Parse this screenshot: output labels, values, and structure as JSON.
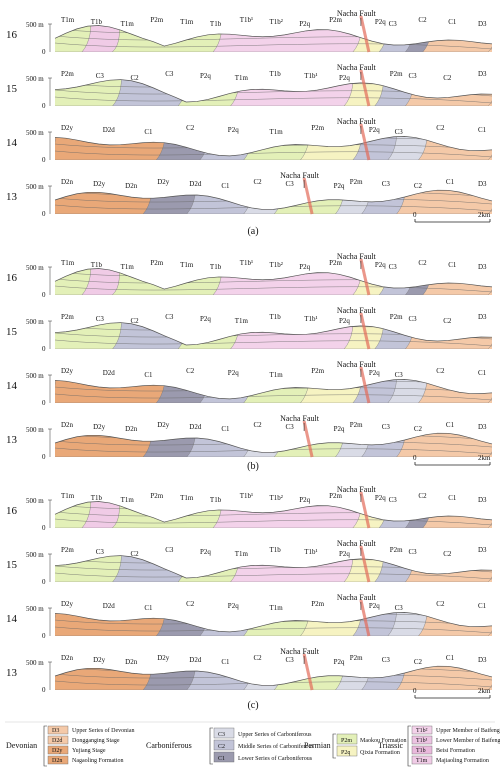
{
  "colors": {
    "devonian": "#f4c9a8",
    "devonian_dark": "#e9a878",
    "carb_upper": "#d9dbe6",
    "carb_mid": "#c2c4d8",
    "carb_low": "#9b9aae",
    "perm_maokou": "#e3f0b8",
    "perm_qixia": "#f6f3c2",
    "tri_upper": "#f3d2ea",
    "tri_lower": "#ecc3e2",
    "tri_beisi": "#e9b9dc",
    "tri_majiao": "#f0cbe6",
    "fault": "#e26b5a"
  },
  "panels": [
    {
      "caption": "(a)",
      "sections": [
        {
          "num": "16",
          "elev": "500 m",
          "zero": "0",
          "labels": [
            "T1m",
            "T1b",
            "T1m",
            "P2m",
            "T1m",
            "T1b",
            "T1b¹",
            "T1b²",
            "P2q",
            "P2m",
            "P2q",
            "C3",
            "C2",
            "C1",
            "D3"
          ],
          "fault": "Nacha Fault"
        },
        {
          "num": "15",
          "elev": "500 m",
          "zero": "0",
          "labels": [
            "P2m",
            "C3",
            "C2",
            "C3",
            "P2q",
            "T1m",
            "T1b",
            "T1b¹",
            "P2q",
            "P2m",
            "C3",
            "C2",
            "D3"
          ],
          "fault": "Nacha Fault"
        },
        {
          "num": "14",
          "elev": "500 m",
          "zero": "0",
          "labels": [
            "D2y",
            "D2d",
            "C1",
            "C2",
            "P2q",
            "T1m",
            "P2m",
            "P2q",
            "C3",
            "C2",
            "C1"
          ],
          "fault": "Nacha Fault"
        },
        {
          "num": "13",
          "elev": "500 m",
          "zero": "0",
          "labels": [
            "D2n",
            "D2y",
            "D2n",
            "D2y",
            "D2d",
            "C1",
            "C2",
            "C3",
            "P2q",
            "P2m",
            "C3",
            "C2",
            "C1",
            "D3"
          ],
          "fault": "Nacha Fault"
        }
      ],
      "scale": {
        "zero": "0",
        "end": "2km"
      }
    },
    {
      "caption": "(b)",
      "sections": [
        {
          "num": "16",
          "elev": "500 m",
          "zero": "0",
          "labels": [
            "T1m",
            "T1b",
            "T1m",
            "P2m",
            "T1m",
            "T1b",
            "T1b¹",
            "T1b²",
            "P2q",
            "P2m",
            "P2q",
            "C3",
            "C2",
            "C1",
            "D3"
          ],
          "fault": "Nacha Fault"
        },
        {
          "num": "15",
          "elev": "500 m",
          "zero": "0",
          "labels": [
            "P2m",
            "C3",
            "C2",
            "C3",
            "P2q",
            "T1m",
            "T1b",
            "T1b¹",
            "P2q",
            "P2m",
            "C3",
            "C2",
            "D3"
          ],
          "fault": "Nacha Fault"
        },
        {
          "num": "14",
          "elev": "500 m",
          "zero": "0",
          "labels": [
            "D2y",
            "D2d",
            "C1",
            "C2",
            "P2q",
            "T1m",
            "P2m",
            "P2q",
            "C3",
            "C2",
            "C1"
          ],
          "fault": "Nacha Fault"
        },
        {
          "num": "13",
          "elev": "500 m",
          "zero": "0",
          "labels": [
            "D2n",
            "D2y",
            "D2n",
            "D2y",
            "D2d",
            "C1",
            "C2",
            "C3",
            "P2q",
            "P2m",
            "C3",
            "C2",
            "C1",
            "D3"
          ],
          "fault": "Nacha Fault"
        }
      ],
      "scale": {
        "zero": "0",
        "end": "2km"
      }
    },
    {
      "caption": "(c)",
      "sections": [
        {
          "num": "16",
          "elev": "500 m",
          "zero": "0",
          "labels": [
            "T1m",
            "T1b",
            "T1m",
            "P2m",
            "T1m",
            "T1b",
            "T1b¹",
            "T1b²",
            "P2q",
            "P2m",
            "P2q",
            "C3",
            "C2",
            "C1",
            "D3"
          ],
          "fault": "Nacha Fault"
        },
        {
          "num": "15",
          "elev": "500 m",
          "zero": "0",
          "labels": [
            "P2m",
            "C3",
            "C2",
            "C3",
            "P2q",
            "T1m",
            "T1b",
            "T1b¹",
            "P2q",
            "P2m",
            "C3",
            "C2",
            "D3"
          ],
          "fault": "Nacha Fault"
        },
        {
          "num": "14",
          "elev": "500 m",
          "zero": "0",
          "labels": [
            "D2y",
            "D2d",
            "C1",
            "C2",
            "P2q",
            "T1m",
            "P2m",
            "P2q",
            "C3",
            "C2",
            "C1"
          ],
          "fault": "Nacha Fault"
        },
        {
          "num": "13",
          "elev": "500 m",
          "zero": "0",
          "labels": [
            "D2n",
            "D2y",
            "D2n",
            "D2y",
            "D2d",
            "C1",
            "C2",
            "C3",
            "P2q",
            "P2m",
            "C3",
            "C2",
            "C1",
            "D3"
          ],
          "fault": "Nacha Fault"
        }
      ],
      "scale": {
        "zero": "0",
        "end": "2km"
      }
    }
  ],
  "legend": {
    "devonian": {
      "title": "Devonian",
      "items": [
        {
          "code": "D3",
          "name": "Upper Series of Devonian"
        },
        {
          "code": "D2d",
          "name": "Dongganging Stage"
        },
        {
          "code": "D2y",
          "name": "Yujiang Stage"
        },
        {
          "code": "D2n",
          "name": "Nagaoling Formation"
        }
      ]
    },
    "carboniferous": {
      "title": "Carboniferous",
      "items": [
        {
          "code": "C3",
          "name": "Upper Series of Carboniferous"
        },
        {
          "code": "C2",
          "name": "Middle Series of Carboniferous"
        },
        {
          "code": "C1",
          "name": "Lower Series of Carboniferous"
        }
      ]
    },
    "permian": {
      "title": "Permian",
      "items": [
        {
          "code": "P2m",
          "name": "Maokou Formation"
        },
        {
          "code": "P2q",
          "name": "Qixia Formation"
        }
      ]
    },
    "triassic": {
      "title": "Triassic",
      "items": [
        {
          "code": "T1b²",
          "name": "Upper Member of Baifeng Formation"
        },
        {
          "code": "T1b¹",
          "name": "Lower Member of Baifeng Formation"
        },
        {
          "code": "T1b",
          "name": "Beisi Formation"
        },
        {
          "code": "T1m",
          "name": "Majiaoling Formation"
        }
      ]
    }
  }
}
